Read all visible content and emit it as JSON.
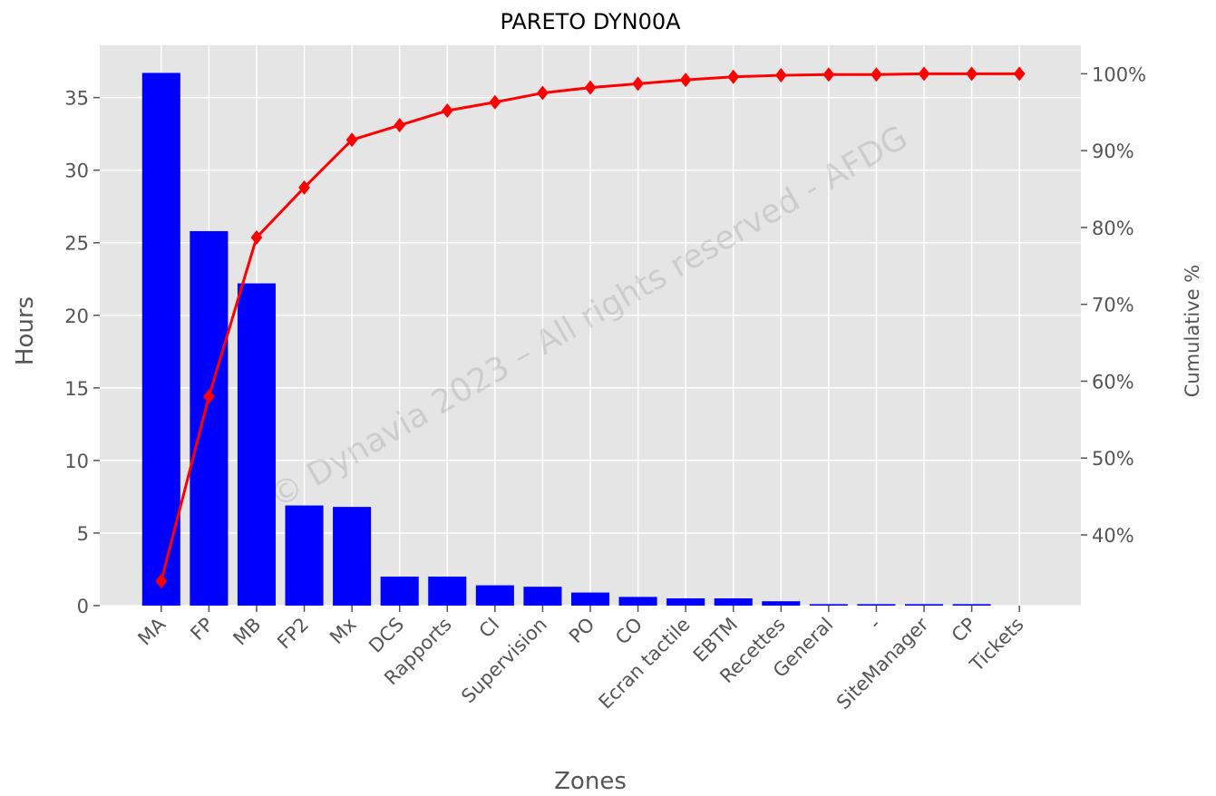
{
  "chart_data": {
    "type": "pareto",
    "title": "PARETO DYN00A",
    "xlabel": "Zones",
    "ylabel": "Hours",
    "y2label": "Cumulative %",
    "watermark": "© Dynavia 2023 – All rights reserved - AFDG",
    "categories": [
      "MA",
      "FP",
      "MB",
      "FP2",
      "Mx",
      "DCS",
      "Rapports",
      "CI",
      "Supervision",
      "PO",
      "CO",
      "Ecran tactile",
      "EBTM",
      "Recettes",
      "General",
      "-",
      "SiteManager",
      "CP",
      "Tickets"
    ],
    "series": [
      {
        "color": "#0000ff",
        "values": [
          36.7,
          25.8,
          22.2,
          6.9,
          6.8,
          2.0,
          2.0,
          1.4,
          1.3,
          0.9,
          0.6,
          0.5,
          0.5,
          0.3,
          0.1,
          0.1,
          0.1,
          0.1,
          0
        ]
      },
      {
        "color": "#ff0000",
        "axis": "y2",
        "values": [
          34.0,
          58.0,
          78.7,
          85.2,
          91.4,
          93.3,
          95.2,
          96.3,
          97.5,
          98.2,
          98.7,
          99.2,
          99.6,
          99.8,
          99.9,
          99.9,
          100,
          100,
          100
        ]
      }
    ],
    "ylim": [
      0,
      38.6
    ],
    "yticks": [
      0,
      5,
      10,
      15,
      20,
      25,
      30,
      35
    ],
    "y2lim": [
      30.8,
      103.7
    ],
    "y2ticks": [
      {
        "value": 40,
        "label": "40%"
      },
      {
        "value": 50,
        "label": "50%"
      },
      {
        "value": 60,
        "label": "60%"
      },
      {
        "value": 70,
        "label": "70%"
      },
      {
        "value": 80,
        "label": "80%"
      },
      {
        "value": 90,
        "label": "90%"
      },
      {
        "value": 100,
        "label": "100%"
      }
    ],
    "grid": true
  }
}
